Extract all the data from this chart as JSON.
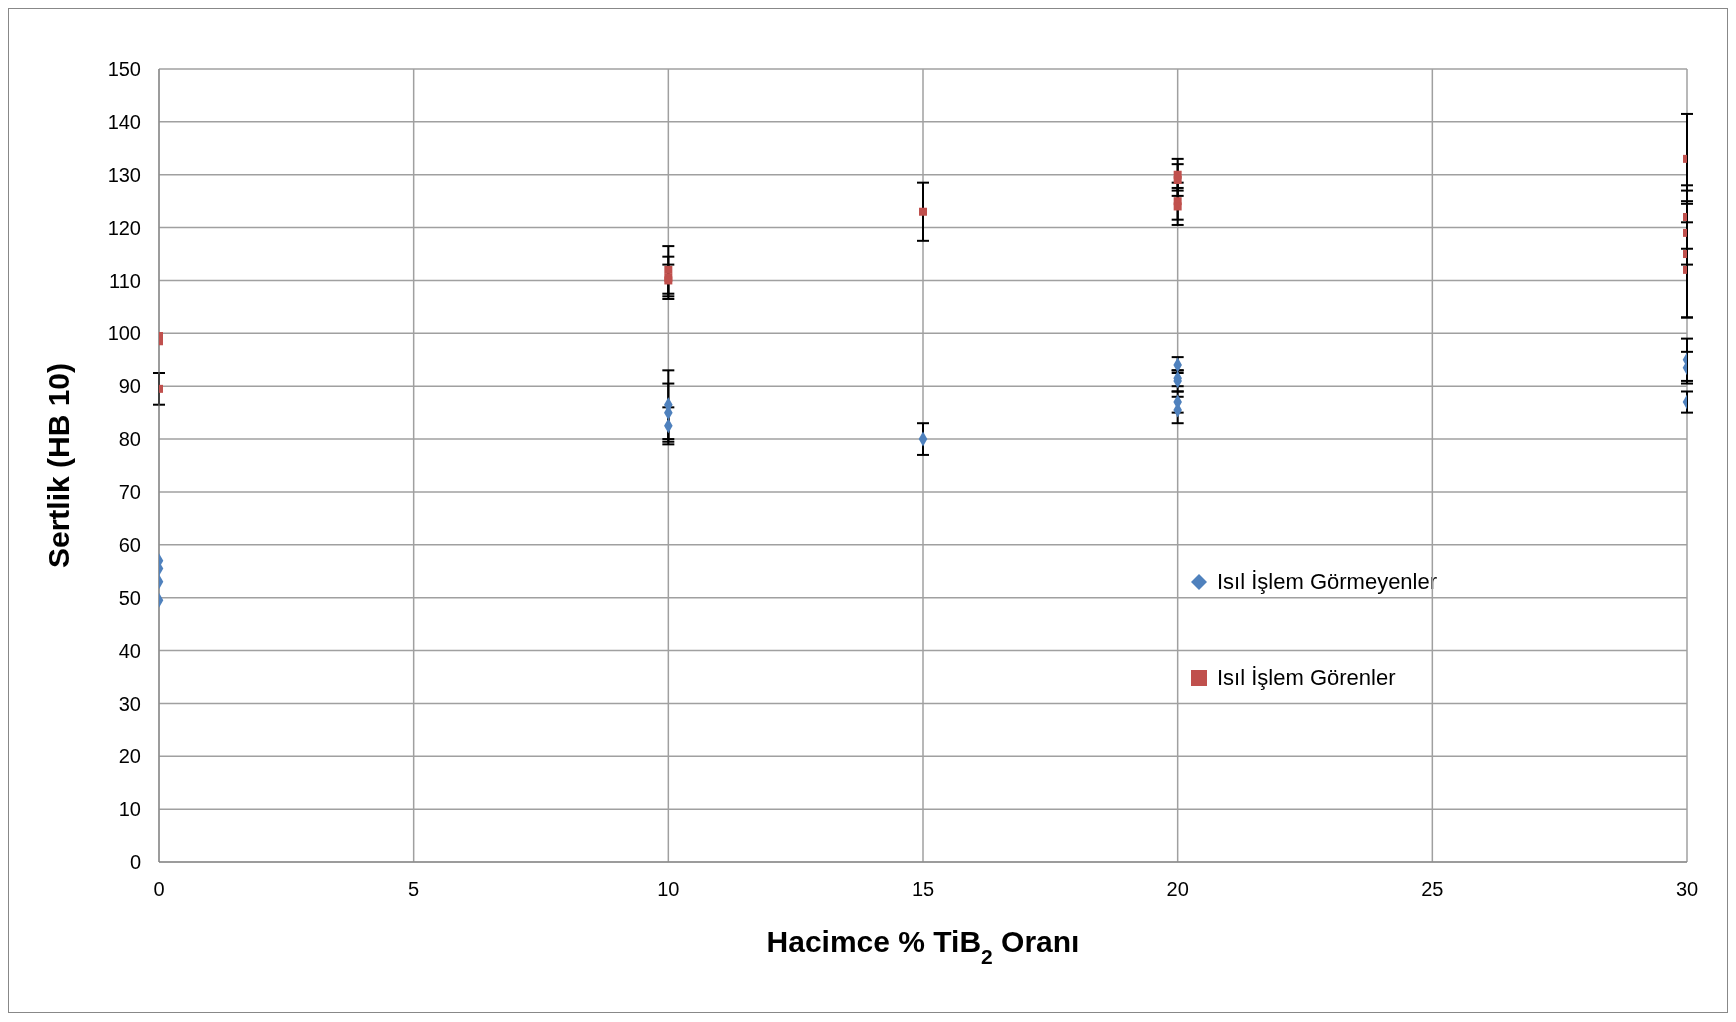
{
  "chart_data": {
    "type": "scatter",
    "xlabel": "Hacimce % TiB$_{2}$ Oranı",
    "ylabel": "Sertlik (HB 10)",
    "xlim": [
      0,
      30
    ],
    "xticks": [
      0,
      5,
      10,
      15,
      20,
      25,
      30
    ],
    "ylim": [
      0,
      150
    ],
    "yticks": [
      0,
      10,
      20,
      30,
      40,
      50,
      60,
      70,
      80,
      90,
      100,
      110,
      120,
      130,
      140,
      150
    ],
    "grid": true,
    "legend": "right",
    "series": [
      {
        "name": "Isıl İşlem Görmeyenler",
        "color": "#4f81bd",
        "marker": "diamond",
        "x": [
          0,
          0,
          0,
          0,
          10,
          10,
          10,
          15,
          20,
          20,
          20,
          20,
          20,
          30,
          30,
          30
        ],
        "values": [
          57,
          55.5,
          53,
          49.5,
          86.5,
          85,
          82.5,
          80,
          94,
          91.5,
          91,
          87,
          85.5,
          95,
          93.5,
          87
        ],
        "errors": [
          null,
          null,
          null,
          null,
          6.5,
          5.5,
          3.5,
          3,
          1.5,
          1.5,
          2,
          2,
          2.5,
          4,
          3,
          2
        ]
      },
      {
        "name": "Isıl İşlem Görenler",
        "color": "#c0504d",
        "marker": "square",
        "x": [
          0,
          0,
          0,
          10,
          10,
          10,
          15,
          20,
          20,
          20,
          20,
          30,
          30,
          30,
          30,
          30
        ],
        "values": [
          99.5,
          98.5,
          89.5,
          112,
          110.5,
          110,
          123,
          130,
          129,
          125,
          124,
          133,
          122,
          119,
          115,
          112
        ],
        "errors": [
          null,
          null,
          3,
          4.5,
          4,
          3,
          5.5,
          3,
          3,
          3.5,
          3.5,
          8.5,
          6,
          6,
          12,
          9
        ]
      }
    ]
  }
}
